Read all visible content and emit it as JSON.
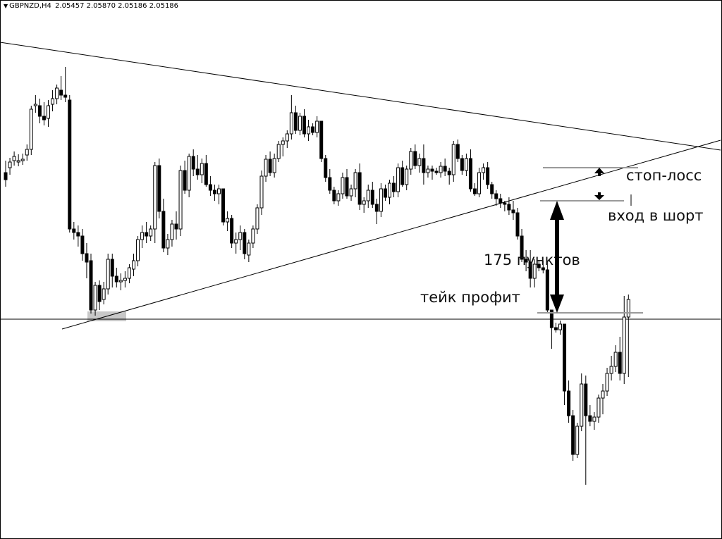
{
  "header": {
    "symbol": "GBPNZD,H4",
    "ohlc": "2.05457 2.05870 2.05186 2.05186",
    "menu_icon": "triangle-down-icon"
  },
  "annotations": {
    "stop_loss": "стоп-лосс",
    "entry_short": "вход в шорт",
    "distance": "175 пунктов",
    "take_profit": "тейк профит"
  },
  "colors": {
    "line": "#000000",
    "level": "#9a9a9a",
    "support_zone": "#c8c8c8"
  },
  "chart_data": {
    "type": "candlestick",
    "title": "GBPNZD,H4",
    "timeframe": "H4",
    "last_ohlc": {
      "open": 2.05457,
      "high": 2.0587,
      "low": 2.05186,
      "close": 2.05186
    },
    "pattern": "symmetrical triangle breakout",
    "candles": [
      [
        0,
        245,
        228,
        265,
        255
      ],
      [
        0,
        238,
        224,
        248,
        230
      ],
      [
        0,
        228,
        215,
        235,
        222
      ],
      [
        0,
        229,
        219,
        236,
        228
      ],
      [
        0,
        228,
        218,
        234,
        226
      ],
      [
        0,
        220,
        205,
        228,
        212
      ],
      [
        0,
        212,
        150,
        220,
        155
      ],
      [
        0,
        150,
        135,
        160,
        148
      ],
      [
        0,
        150,
        140,
        175,
        165
      ],
      [
        0,
        165,
        145,
        178,
        170
      ],
      [
        0,
        168,
        142,
        180,
        150
      ],
      [
        0,
        148,
        128,
        158,
        140
      ],
      [
        0,
        140,
        120,
        148,
        125
      ],
      [
        0,
        128,
        108,
        142,
        135
      ],
      [
        0,
        135,
        95,
        145,
        138
      ],
      [
        0,
        142,
        135,
        330,
        325
      ],
      [
        0,
        325,
        315,
        340,
        330
      ],
      [
        0,
        330,
        320,
        350,
        335
      ],
      [
        0,
        335,
        325,
        370,
        360
      ],
      [
        0,
        360,
        345,
        395,
        372
      ],
      [
        0,
        370,
        360,
        445,
        440
      ],
      [
        0,
        440,
        400,
        448,
        405
      ],
      [
        0,
        405,
        398,
        440,
        428
      ],
      [
        0,
        425,
        400,
        432,
        410
      ],
      [
        0,
        410,
        360,
        418,
        368
      ],
      [
        0,
        368,
        360,
        408,
        392
      ],
      [
        0,
        392,
        380,
        408,
        400
      ],
      [
        0,
        400,
        388,
        412,
        398
      ],
      [
        0,
        398,
        385,
        408,
        395
      ],
      [
        0,
        395,
        375,
        402,
        380
      ],
      [
        0,
        382,
        360,
        392,
        370
      ],
      [
        0,
        370,
        335,
        378,
        340
      ],
      [
        0,
        340,
        320,
        352,
        330
      ],
      [
        0,
        330,
        315,
        345,
        335
      ],
      [
        0,
        335,
        320,
        342,
        325
      ],
      [
        0,
        325,
        230,
        345,
        235
      ],
      [
        0,
        235,
        225,
        310,
        300
      ],
      [
        0,
        300,
        282,
        358,
        352
      ],
      [
        0,
        352,
        332,
        362,
        340
      ],
      [
        0,
        340,
        312,
        350,
        318
      ],
      [
        0,
        318,
        300,
        340,
        325
      ],
      [
        0,
        325,
        235,
        335,
        242
      ],
      [
        0,
        242,
        228,
        275,
        270
      ],
      [
        0,
        270,
        218,
        280,
        222
      ],
      [
        0,
        222,
        212,
        250,
        240
      ],
      [
        0,
        240,
        220,
        255,
        248
      ],
      [
        0,
        248,
        225,
        260,
        232
      ],
      [
        0,
        232,
        220,
        265,
        262
      ],
      [
        0,
        262,
        250,
        278,
        270
      ],
      [
        0,
        270,
        262,
        285,
        275
      ],
      [
        0,
        275,
        262,
        290,
        268
      ],
      [
        0,
        268,
        305,
        320,
        315
      ],
      [
        0,
        315,
        300,
        328,
        310
      ],
      [
        0,
        310,
        305,
        352,
        345
      ],
      [
        0,
        345,
        330,
        360,
        340
      ],
      [
        0,
        340,
        320,
        355,
        330
      ],
      [
        0,
        330,
        325,
        368,
        360
      ],
      [
        0,
        362,
        340,
        372,
        345
      ],
      [
        0,
        345,
        320,
        352,
        325
      ],
      [
        0,
        325,
        290,
        332,
        295
      ],
      [
        0,
        295,
        242,
        305,
        250
      ],
      [
        0,
        250,
        220,
        258,
        226
      ],
      [
        0,
        226,
        215,
        250,
        245
      ],
      [
        0,
        245,
        218,
        252,
        225
      ],
      [
        0,
        225,
        200,
        230,
        205
      ],
      [
        0,
        205,
        195,
        222,
        200
      ],
      [
        0,
        200,
        185,
        210,
        190
      ],
      [
        0,
        190,
        135,
        198,
        160
      ],
      [
        0,
        160,
        150,
        190,
        185
      ],
      [
        0,
        185,
        160,
        192,
        165
      ],
      [
        0,
        165,
        155,
        195,
        190
      ],
      [
        0,
        190,
        170,
        200,
        180
      ],
      [
        0,
        180,
        175,
        192,
        188
      ],
      [
        0,
        188,
        165,
        195,
        172
      ],
      [
        0,
        172,
        175,
        230,
        225
      ],
      [
        0,
        225,
        220,
        258,
        252
      ],
      [
        0,
        252,
        240,
        275,
        270
      ],
      [
        0,
        270,
        265,
        290,
        285
      ],
      [
        0,
        285,
        270,
        292,
        275
      ],
      [
        0,
        275,
        245,
        282,
        252
      ],
      [
        0,
        252,
        240,
        282,
        278
      ],
      [
        0,
        278,
        262,
        285,
        268
      ],
      [
        0,
        268,
        240,
        280,
        245
      ],
      [
        0,
        245,
        232,
        298,
        290
      ],
      [
        0,
        290,
        280,
        302,
        285
      ],
      [
        0,
        285,
        262,
        295,
        270
      ],
      [
        0,
        270,
        258,
        295,
        290
      ],
      [
        0,
        290,
        282,
        318,
        300
      ],
      [
        0,
        300,
        260,
        308,
        268
      ],
      [
        0,
        268,
        262,
        285,
        280
      ],
      [
        0,
        280,
        255,
        290,
        260
      ],
      [
        0,
        260,
        250,
        280,
        272
      ],
      [
        0,
        272,
        232,
        280,
        238
      ],
      [
        0,
        238,
        228,
        265,
        262
      ],
      [
        0,
        262,
        235,
        270,
        240
      ],
      [
        0,
        240,
        210,
        248,
        215
      ],
      [
        0,
        215,
        205,
        240,
        235
      ],
      [
        0,
        235,
        218,
        245,
        225
      ],
      [
        0,
        225,
        205,
        262,
        245
      ],
      [
        0,
        245,
        235,
        252,
        240
      ],
      [
        0,
        240,
        235,
        255,
        243
      ],
      [
        0,
        243,
        238,
        248,
        245
      ],
      [
        0,
        245,
        230,
        252,
        236
      ],
      [
        0,
        236,
        225,
        250,
        243
      ],
      [
        0,
        243,
        238,
        262,
        248
      ],
      [
        0,
        248,
        200,
        258,
        205
      ],
      [
        0,
        205,
        198,
        230,
        225
      ],
      [
        0,
        225,
        220,
        248,
        242
      ],
      [
        0,
        242,
        218,
        250,
        225
      ],
      [
        0,
        225,
        212,
        272,
        268
      ],
      [
        0,
        268,
        260,
        278,
        275
      ],
      [
        0,
        275,
        238,
        280,
        245
      ],
      [
        0,
        245,
        232,
        255,
        238
      ],
      [
        0,
        238,
        230,
        268,
        262
      ],
      [
        0,
        262,
        258,
        282,
        275
      ],
      [
        0,
        275,
        270,
        292,
        282
      ],
      [
        0,
        282,
        275,
        295,
        288
      ],
      [
        0,
        288,
        285,
        300,
        290
      ],
      [
        0,
        290,
        280,
        305,
        298
      ],
      [
        0,
        298,
        285,
        312,
        302
      ],
      [
        0,
        302,
        295,
        340,
        335
      ],
      [
        0,
        335,
        325,
        372,
        368
      ],
      [
        0,
        368,
        355,
        385,
        372
      ],
      [
        0,
        372,
        355,
        408,
        395
      ],
      [
        0,
        395,
        368,
        408,
        375
      ],
      [
        0,
        375,
        370,
        385,
        380
      ],
      [
        0,
        380,
        370,
        388,
        383
      ],
      [
        0,
        383,
        372,
        444,
        440
      ],
      [
        0,
        440,
        450,
        495,
        465
      ],
      [
        0,
        465,
        458,
        472,
        468
      ],
      [
        0,
        468,
        455,
        475,
        460
      ],
      [
        0,
        460,
        532,
        575,
        555
      ],
      [
        0,
        555,
        540,
        600,
        590
      ],
      [
        0,
        590,
        582,
        654,
        645
      ],
      [
        0,
        645,
        600,
        650,
        605
      ],
      [
        0,
        605,
        530,
        612,
        545
      ],
      [
        0,
        545,
        533,
        688,
        590
      ],
      [
        0,
        590,
        575,
        605,
        598
      ],
      [
        0,
        598,
        585,
        610,
        592
      ],
      [
        0,
        592,
        560,
        600,
        565
      ],
      [
        0,
        565,
        545,
        588,
        555
      ],
      [
        0,
        555,
        522,
        562,
        530
      ],
      [
        0,
        530,
        505,
        540,
        520
      ],
      [
        0,
        520,
        490,
        528,
        500
      ],
      [
        0,
        500,
        478,
        540,
        530
      ],
      [
        0,
        530,
        420,
        545,
        450
      ],
      [
        0,
        450,
        418,
        535,
        425
      ]
    ],
    "trendlines": [
      {
        "name": "upper",
        "from": [
          0,
          60
        ],
        "to": [
          1022,
          213
        ]
      },
      {
        "name": "lower",
        "from": [
          88,
          467
        ],
        "to": [
          1022,
          199
        ]
      },
      {
        "name": "horizontal support",
        "from": [
          0,
          453
        ],
        "to": [
          1022,
          453
        ]
      }
    ],
    "levels": {
      "stop_loss": 238,
      "entry": 285,
      "take_profit": 444,
      "distance_points": 175
    },
    "ylim": [
      0,
      765
    ],
    "grid": false
  }
}
